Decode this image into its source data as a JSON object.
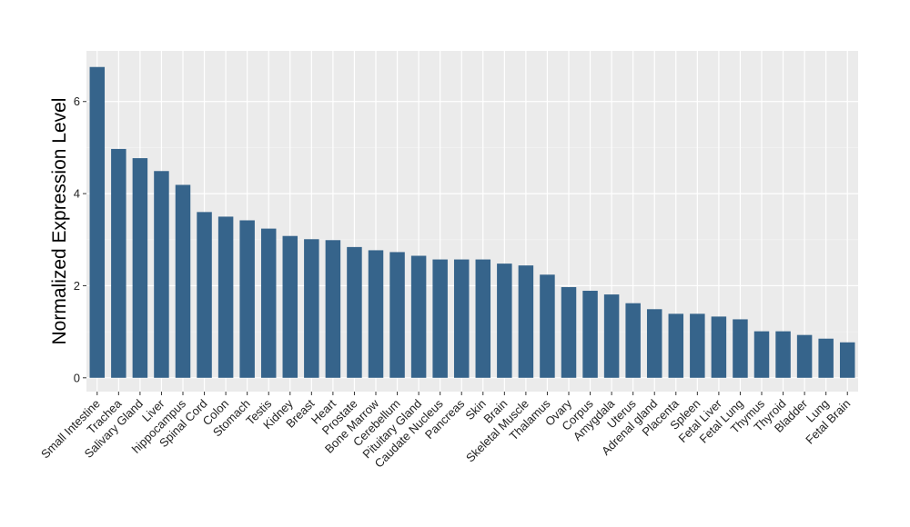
{
  "chart_data": {
    "type": "bar",
    "ylabel": "Normalized Expression Level",
    "xlabel": "",
    "ylim": [
      -0.3,
      7.1
    ],
    "yticks": [
      0,
      2,
      4,
      6
    ],
    "grid": true,
    "bar_color": "#36648b",
    "panel_color": "#ebebeb",
    "categories": [
      "Small Intestine",
      "Trachea",
      "Salivary Gland",
      "Liver",
      "hippocampus",
      "Spinal Cord",
      "Colon",
      "Stomach",
      "Testis",
      "Kidney",
      "Breast",
      "Heart",
      "Prostate",
      "Bone Marrow",
      "Cerebellum",
      "Pituitary Gland",
      "Caudate Nucleus",
      "Pancreas",
      "Skin",
      "Brain",
      "Skeletal Muscle",
      "Thalamus",
      "Ovary",
      "Corpus",
      "Amygdala",
      "Uterus",
      "Adrenal gland",
      "Placenta",
      "Spleen",
      "Fetal Liver",
      "Fetal Lung",
      "Thymus",
      "Thyroid",
      "Bladder",
      "Lung",
      "Fetal Brain"
    ],
    "values": [
      6.75,
      4.97,
      4.77,
      4.49,
      4.19,
      3.6,
      3.5,
      3.42,
      3.24,
      3.08,
      3.01,
      2.99,
      2.84,
      2.77,
      2.73,
      2.65,
      2.57,
      2.57,
      2.57,
      2.48,
      2.44,
      2.24,
      1.97,
      1.89,
      1.81,
      1.62,
      1.49,
      1.39,
      1.39,
      1.33,
      1.27,
      1.01,
      1.01,
      0.93,
      0.85,
      0.77
    ]
  }
}
